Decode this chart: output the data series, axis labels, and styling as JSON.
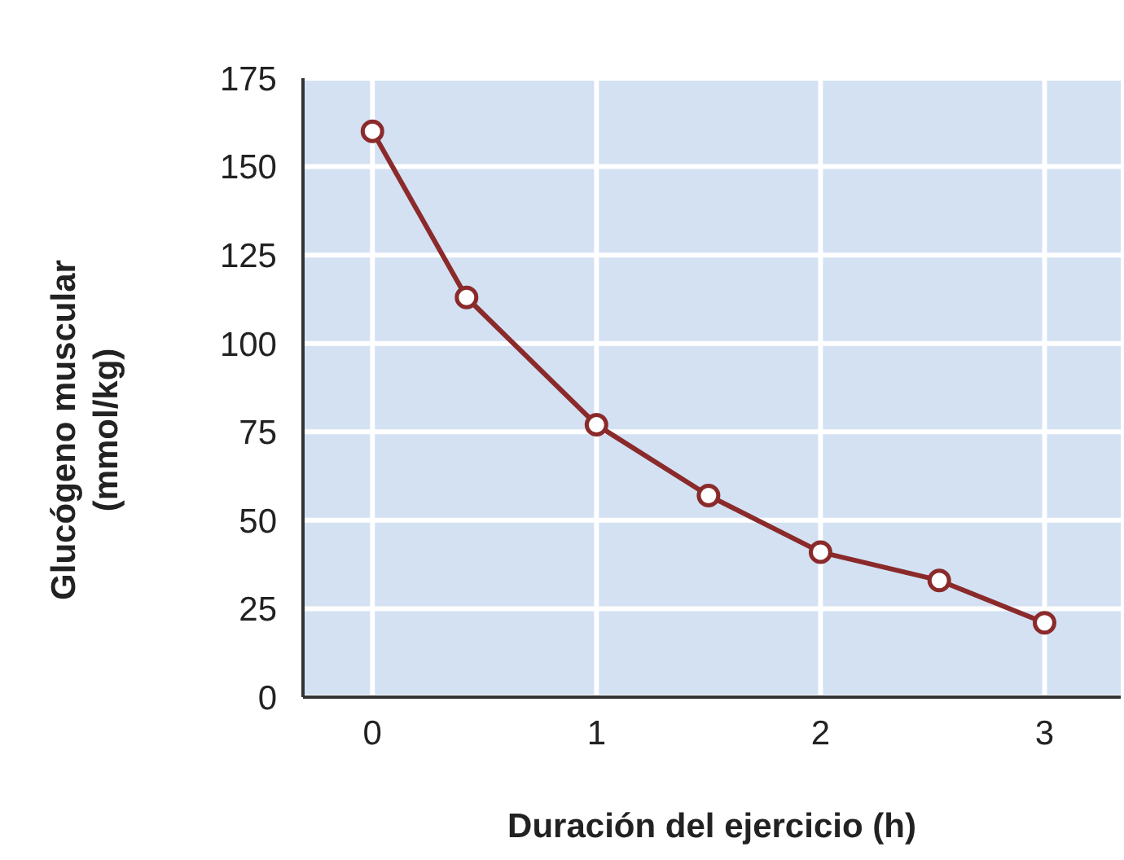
{
  "chart_data": {
    "type": "line",
    "xlabel": "Duración del ejercicio (h)",
    "ylabel": "Glucógeno muscular (mmol/kg)",
    "x": [
      0,
      0.42,
      1,
      1.5,
      2,
      2.53,
      3
    ],
    "series": [
      {
        "color": "#8b2a2a",
        "values": [
          160,
          113,
          77,
          57,
          41,
          33,
          21
        ]
      }
    ],
    "xlim": [
      -0.31,
      3.34
    ],
    "xticks": [
      0,
      1,
      2,
      3
    ],
    "ylim": [
      0,
      175
    ],
    "yticks": [
      0,
      25,
      50,
      75,
      100,
      125,
      150,
      175
    ],
    "grid": true,
    "marker": "circle",
    "line_style": "solid"
  }
}
